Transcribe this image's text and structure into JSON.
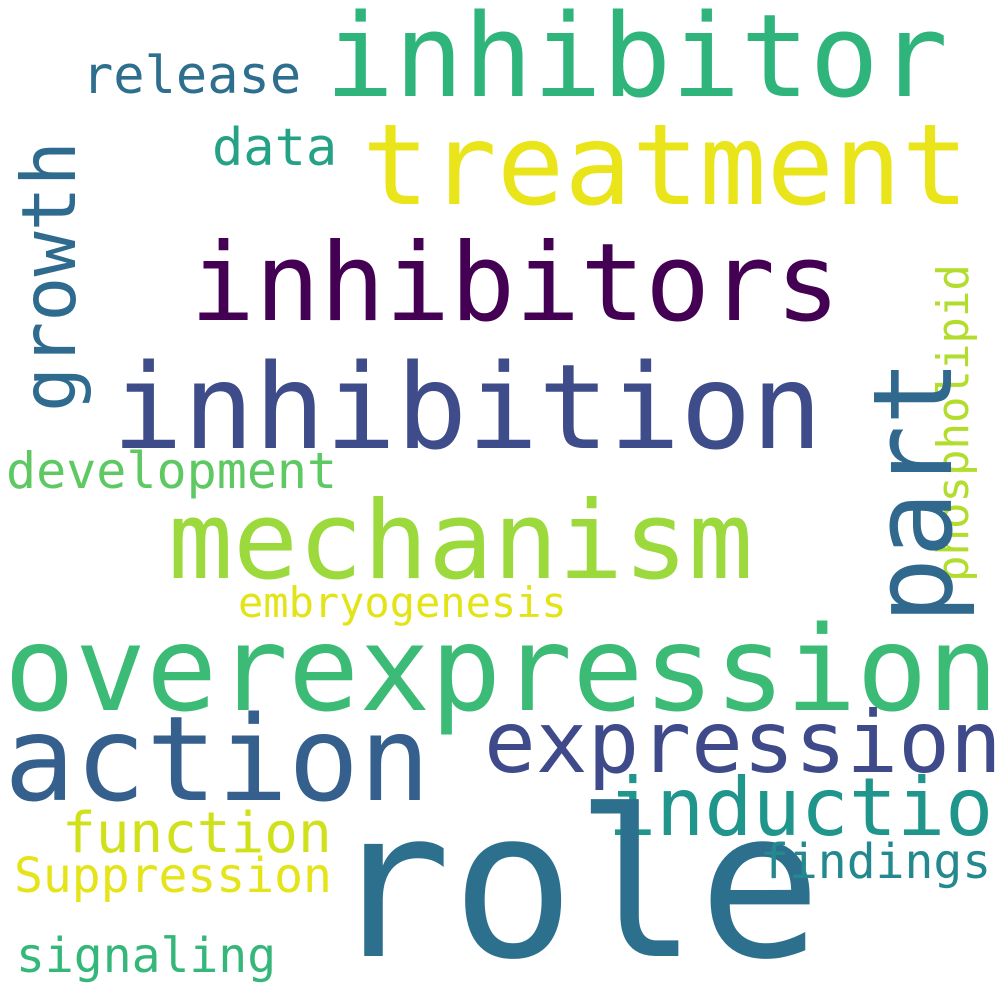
{
  "words": [
    {
      "text": "inhibitor",
      "color": "#2fb47c"
    },
    {
      "text": "treatment",
      "color": "#eae51a"
    },
    {
      "text": "release",
      "color": "#2e6e8e"
    },
    {
      "text": "growth",
      "color": "#2f6b8e"
    },
    {
      "text": "data",
      "color": "#25a186"
    },
    {
      "text": "inhibitors",
      "color": "#440154"
    },
    {
      "text": "phospholipid",
      "color": "#b2dd2c"
    },
    {
      "text": "part",
      "color": "#31688e"
    },
    {
      "text": "inhibition",
      "color": "#3e4c8a"
    },
    {
      "text": "development",
      "color": "#5ec962"
    },
    {
      "text": "mechanism",
      "color": "#9bd93c"
    },
    {
      "text": "embryogenesis",
      "color": "#e2e418"
    },
    {
      "text": "overexpression",
      "color": "#3bbb75"
    },
    {
      "text": "action",
      "color": "#355f8d"
    },
    {
      "text": "expression",
      "color": "#3e4a89"
    },
    {
      "text": "induction",
      "color": "#1f958b"
    },
    {
      "text": "function",
      "color": "#d0e11c"
    },
    {
      "text": "role",
      "color": "#2d708e"
    },
    {
      "text": "findings",
      "color": "#23898e"
    },
    {
      "text": "Suppression",
      "color": "#e5e419"
    },
    {
      "text": "signaling",
      "color": "#35b779"
    }
  ]
}
